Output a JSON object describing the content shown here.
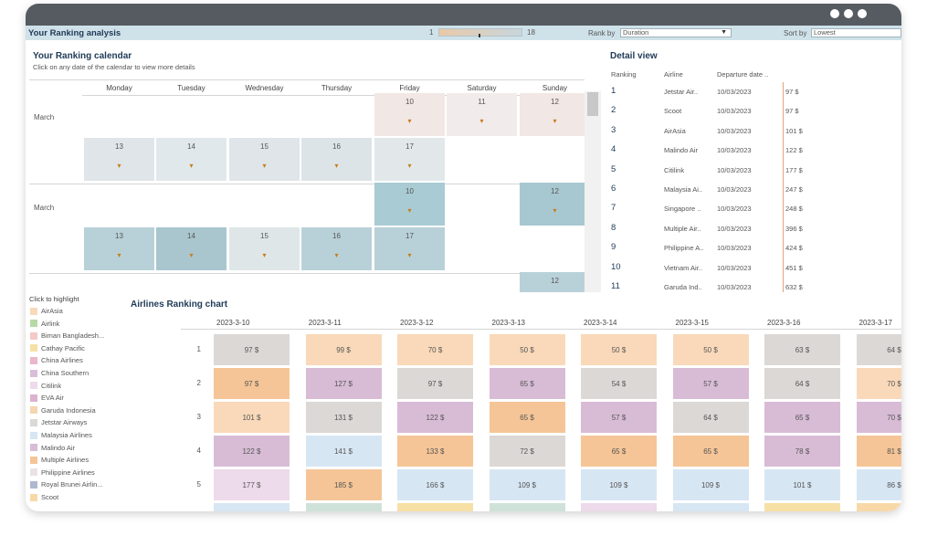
{
  "header": {
    "title": "Your Ranking analysis",
    "slider_min": "1",
    "slider_max": "18",
    "rank_by_label": "Rank by",
    "rank_by_value": "Duration",
    "sort_by_label": "Sort by",
    "sort_by_value": "Lowest"
  },
  "calendar": {
    "title": "Your Ranking calendar",
    "subtitle": "Click on any date of the calendar to view more details",
    "days": [
      "Monday",
      "Tuesday",
      "Wednesday",
      "Thursday",
      "Friday",
      "Saturday",
      "Sunday"
    ],
    "month_labels": [
      "March",
      "March"
    ]
  },
  "detail": {
    "title": "Detail view",
    "cols": [
      "Ranking",
      "Airline",
      "Departure date .."
    ],
    "rows": [
      {
        "rank": "1",
        "airline": "Jetstar Air..",
        "date": "10/03/2023",
        "price": "97 $"
      },
      {
        "rank": "2",
        "airline": "Scoot",
        "date": "10/03/2023",
        "price": "97 $"
      },
      {
        "rank": "3",
        "airline": "AirAsia",
        "date": "10/03/2023",
        "price": "101 $"
      },
      {
        "rank": "4",
        "airline": "Malindo Air",
        "date": "10/03/2023",
        "price": "122 $"
      },
      {
        "rank": "5",
        "airline": "Citilink",
        "date": "10/03/2023",
        "price": "177 $"
      },
      {
        "rank": "6",
        "airline": "Malaysia Ai..",
        "date": "10/03/2023",
        "price": "247 $"
      },
      {
        "rank": "7",
        "airline": "Singapore ..",
        "date": "10/03/2023",
        "price": "248 $"
      },
      {
        "rank": "8",
        "airline": "Multiple Air..",
        "date": "10/03/2023",
        "price": "396 $"
      },
      {
        "rank": "9",
        "airline": "Philippine A..",
        "date": "10/03/2023",
        "price": "424 $"
      },
      {
        "rank": "10",
        "airline": "Vietnam Air..",
        "date": "10/03/2023",
        "price": "451 $"
      },
      {
        "rank": "11",
        "airline": "Garuda Ind..",
        "date": "10/03/2023",
        "price": "632 $"
      }
    ]
  },
  "legend": {
    "title": "Click to highlight",
    "items": [
      {
        "label": "AirAsia",
        "color": "#f9d9b9"
      },
      {
        "label": "Airlink",
        "color": "#b7d9a8"
      },
      {
        "label": "Biman Bangladesh...",
        "color": "#f6c9c9"
      },
      {
        "label": "Cathay Pacific",
        "color": "#f7e0a6"
      },
      {
        "label": "China Airlines",
        "color": "#e9b6cc"
      },
      {
        "label": "China Southern",
        "color": "#d9bed9"
      },
      {
        "label": "Citilink",
        "color": "#eddaea"
      },
      {
        "label": "EVA Air",
        "color": "#dcb2cf"
      },
      {
        "label": "Garuda Indonesia",
        "color": "#f6d6ae"
      },
      {
        "label": "Jetstar Airways",
        "color": "#dbd8d6"
      },
      {
        "label": "Malaysia Airlines",
        "color": "#d7e6f3"
      },
      {
        "label": "Malindo Air",
        "color": "#d8bcd6"
      },
      {
        "label": "Multiple Airlines",
        "color": "#f5c597"
      },
      {
        "label": "Philippine Airlines",
        "color": "#e9e4e2"
      },
      {
        "label": "Royal Brunei Airlin...",
        "color": "#aeb9cf"
      },
      {
        "label": "Scoot",
        "color": "#f9d8a8"
      }
    ]
  },
  "ranking_chart": {
    "title": "Airlines Ranking chart",
    "dates": [
      "2023-3-10",
      "2023-3-11",
      "2023-3-12",
      "2023-3-13",
      "2023-3-14",
      "2023-3-15",
      "2023-3-16",
      "2023-3-17"
    ],
    "row_labels": [
      "1",
      "2",
      "3",
      "4",
      "5"
    ],
    "cells": [
      [
        "97 $",
        "99 $",
        "70 $",
        "50 $",
        "50 $",
        "50 $",
        "63 $",
        "64 $"
      ],
      [
        "97 $",
        "127 $",
        "97 $",
        "65 $",
        "54 $",
        "57 $",
        "64 $",
        "70 $"
      ],
      [
        "101 $",
        "131 $",
        "122 $",
        "65 $",
        "57 $",
        "64 $",
        "65 $",
        "70 $"
      ],
      [
        "122 $",
        "141 $",
        "133 $",
        "72 $",
        "65 $",
        "65 $",
        "78 $",
        "81 $"
      ],
      [
        "177 $",
        "185 $",
        "166 $",
        "109 $",
        "109 $",
        "109 $",
        "101 $",
        "86 $"
      ]
    ]
  }
}
